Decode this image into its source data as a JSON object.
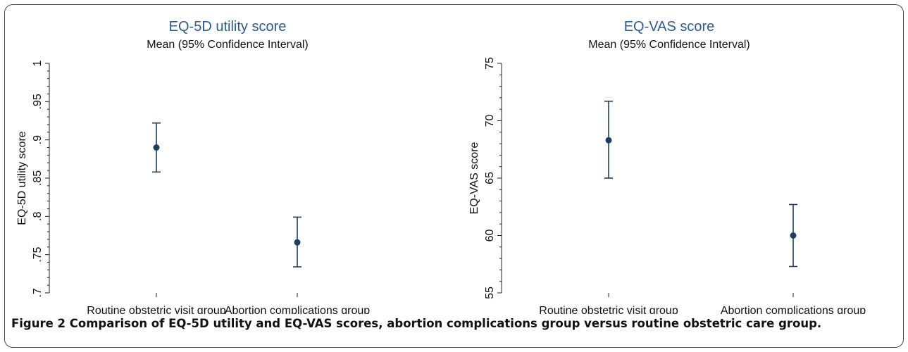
{
  "caption": "Figure 2 Comparison of EQ-5D utility and EQ-VAS scores, abortion complications group versus routine obstetric care group.",
  "chart_data": [
    {
      "type": "scatter",
      "title": "EQ-5D utility score",
      "subtitle": "Mean (95% Confidence Interval)",
      "ylabel": "EQ-5D utility score",
      "xlabel": "",
      "categories": [
        "Routine obstetric visit group",
        "Abortion complications group"
      ],
      "means": [
        0.89,
        0.766
      ],
      "lower": [
        0.858,
        0.734
      ],
      "upper": [
        0.922,
        0.799
      ],
      "ylim": [
        0.7,
        1
      ],
      "yticks": [
        0.7,
        0.75,
        0.8,
        0.85,
        0.9,
        0.95,
        1
      ],
      "ytick_labels": [
        ".7",
        ".75",
        ".8",
        ".85",
        ".9",
        ".95",
        "1"
      ],
      "grid": false,
      "colors": {
        "title": "#2e5c8a",
        "marker": "#1f3f5f"
      }
    },
    {
      "type": "scatter",
      "title": "EQ-VAS score",
      "subtitle": "Mean (95% Confidence Interval)",
      "ylabel": "EQ-VAS score",
      "xlabel": "",
      "categories": [
        "Routine obstetric visit group",
        "Abortion complications group"
      ],
      "means": [
        68.3,
        60.0
      ],
      "lower": [
        65.0,
        57.3
      ],
      "upper": [
        71.7,
        62.7
      ],
      "ylim": [
        55,
        75
      ],
      "yticks": [
        55,
        60,
        65,
        70,
        75
      ],
      "ytick_labels": [
        "55",
        "60",
        "65",
        "70",
        "75"
      ],
      "grid": false,
      "colors": {
        "title": "#2e5c8a",
        "marker": "#1f3f5f"
      }
    }
  ]
}
